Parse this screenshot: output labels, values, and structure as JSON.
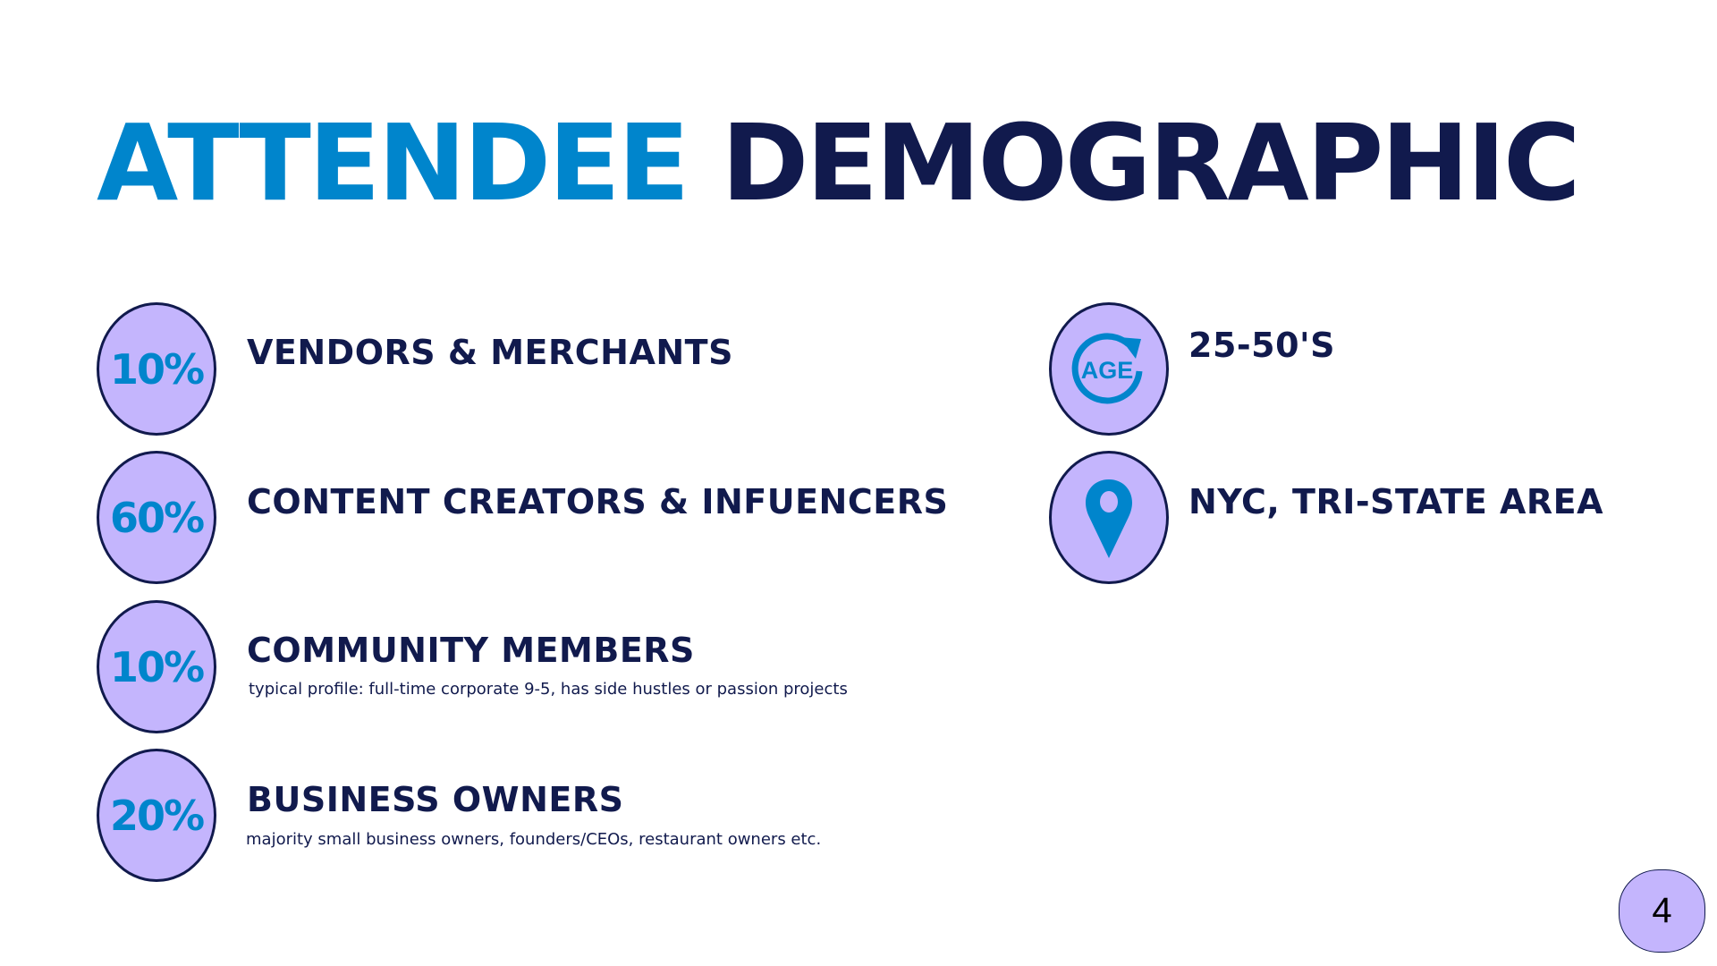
{
  "title": {
    "part1": "ATTENDEE",
    "part2": "DEMOGRAPHIC"
  },
  "colors": {
    "accent_blue": "#0085CC",
    "navy": "#111A4D",
    "lavender": "#C4B5FD"
  },
  "segments": [
    {
      "percent": "10%",
      "label": "VENDORS & MERCHANTS",
      "note": ""
    },
    {
      "percent": "60%",
      "label": "CONTENT CREATORS & INFUENCERS",
      "note": ""
    },
    {
      "percent": "10%",
      "label": "COMMUNITY MEMBERS",
      "note": "typical profile: full-time corporate 9-5, has side hustles or passion projects"
    },
    {
      "percent": "20%",
      "label": "BUSINESS OWNERS",
      "note": "majority small business owners, founders/CEOs, restaurant owners etc."
    }
  ],
  "facts": [
    {
      "icon": "age-cycle-icon",
      "icon_text": "AGE",
      "label": "25-50'S"
    },
    {
      "icon": "location-pin-icon",
      "label": "NYC, TRI-STATE AREA"
    }
  ],
  "page_number": "4"
}
